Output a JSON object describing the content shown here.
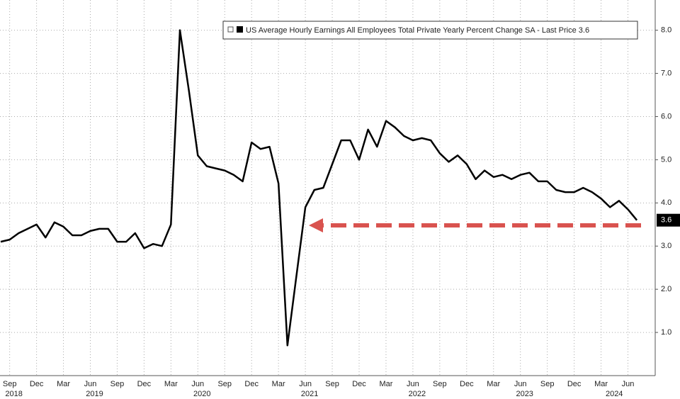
{
  "chart_data": {
    "type": "line",
    "categories": [
      null,
      "Sep",
      null,
      null,
      "Dec",
      null,
      null,
      "Mar",
      null,
      null,
      "Jun",
      null,
      null,
      "Sep",
      null,
      null,
      "Dec",
      null,
      null,
      "Mar",
      null,
      null,
      "Jun",
      null,
      null,
      "Sep",
      null,
      null,
      "Dec",
      null,
      null,
      "Mar",
      null,
      null,
      "Jun",
      null,
      null,
      "Sep",
      null,
      null,
      "Dec",
      null,
      null,
      "Mar",
      null,
      null,
      "Jun",
      null,
      null,
      "Sep",
      null,
      null,
      "Dec",
      null,
      null,
      "Mar",
      null,
      null,
      "Jun",
      null,
      null,
      "Sep",
      null,
      null,
      "Dec",
      null,
      null,
      "Mar",
      null,
      null,
      "Jun",
      null
    ],
    "years": [
      {
        "label": "2018",
        "category": 1
      },
      {
        "label": "2019",
        "category": 10
      },
      {
        "label": "2020",
        "category": 22
      },
      {
        "label": "2021",
        "category": 34
      },
      {
        "label": "2022",
        "category": 46
      },
      {
        "label": "2023",
        "category": 58
      },
      {
        "label": "2024",
        "category": 68
      }
    ],
    "series": [
      {
        "name": "US Average Hourly Earnings All Employees Total Private Yearly Percent Change SA - Last Price 3.6",
        "color": "#000000",
        "values": [
          3.1,
          3.15,
          3.3,
          3.4,
          3.5,
          3.2,
          3.55,
          3.45,
          3.25,
          3.25,
          3.35,
          3.4,
          3.4,
          3.1,
          3.1,
          3.3,
          2.95,
          3.05,
          3.0,
          3.5,
          8.0,
          6.6,
          5.1,
          4.85,
          4.8,
          4.75,
          4.65,
          4.5,
          5.4,
          5.25,
          5.3,
          4.45,
          0.7,
          2.3,
          3.9,
          4.3,
          4.35,
          4.9,
          5.45,
          5.45,
          5.0,
          5.7,
          5.3,
          5.9,
          5.75,
          5.55,
          5.45,
          5.5,
          5.45,
          5.15,
          4.95,
          5.1,
          4.9,
          4.55,
          4.75,
          4.6,
          4.65,
          4.55,
          4.65,
          4.7,
          4.5,
          4.5,
          4.3,
          4.25,
          4.25,
          4.35,
          4.25,
          4.1,
          3.9,
          4.05,
          3.85,
          3.6
        ]
      }
    ],
    "last_price": 3.6,
    "ylim": [
      0,
      8.7
    ],
    "yticks": [
      {
        "value": 1,
        "label": "1.0"
      },
      {
        "value": 2,
        "label": "2.0"
      },
      {
        "value": 3,
        "label": "3.0"
      },
      {
        "value": 4,
        "label": "4.0"
      },
      {
        "value": 5,
        "label": "5.0"
      },
      {
        "value": 6,
        "label": "6.0"
      },
      {
        "value": 7,
        "label": "7.0"
      },
      {
        "value": 8,
        "label": "8.0"
      }
    ],
    "grid": true
  }
}
